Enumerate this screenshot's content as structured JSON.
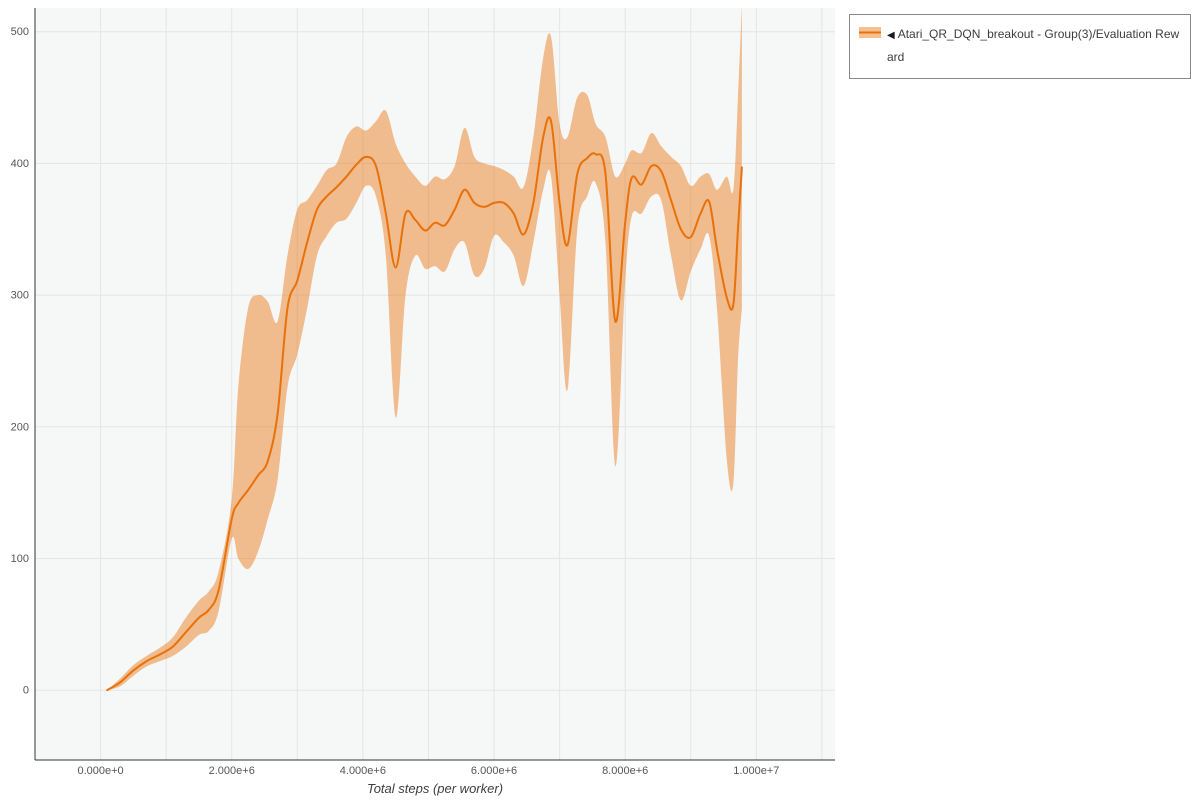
{
  "legend": {
    "marker": "◀",
    "label": "Atari_QR_DQN_breakout - Group(3)/Evaluation Reward"
  },
  "chart_data": {
    "type": "line",
    "title": "",
    "xlabel": "Total steps (per worker)",
    "ylabel": "",
    "grid": true,
    "legend_position": "top-right",
    "xlim": [
      -1000000,
      11200000
    ],
    "ylim": [
      -53,
      518
    ],
    "x_ticks": [
      {
        "value": 0,
        "label": "0.000e+0"
      },
      {
        "value": 2000000,
        "label": "2.000e+6"
      },
      {
        "value": 4000000,
        "label": "4.000e+6"
      },
      {
        "value": 6000000,
        "label": "6.000e+6"
      },
      {
        "value": 8000000,
        "label": "8.000e+6"
      },
      {
        "value": 10000000,
        "label": "1.000e+7"
      }
    ],
    "y_ticks": [
      {
        "value": 0,
        "label": "0"
      },
      {
        "value": 100,
        "label": "100"
      },
      {
        "value": 200,
        "label": "200"
      },
      {
        "value": 300,
        "label": "300"
      },
      {
        "value": 400,
        "label": "400"
      },
      {
        "value": 500,
        "label": "500"
      }
    ],
    "x_gridline_step": 1000000,
    "x_gridline_max": 11000000,
    "colors": {
      "line": "#e8710a",
      "band": "#e8710a",
      "band_opacity": 0.45,
      "grid": "#e3e6e5",
      "plot_background": "#f6f7f7",
      "axis": "#333333",
      "tick_text": "#555555"
    },
    "series": [
      {
        "name": "Atari_QR_DQN_breakout - Group(3)/Evaluation Reward",
        "x": [
          100000,
          300000,
          500000,
          700000,
          900000,
          1100000,
          1300000,
          1500000,
          1650000,
          1800000,
          2000000,
          2100000,
          2250000,
          2400000,
          2550000,
          2700000,
          2850000,
          3000000,
          3150000,
          3300000,
          3450000,
          3600000,
          3750000,
          3900000,
          4050000,
          4200000,
          4350000,
          4500000,
          4650000,
          4800000,
          4950000,
          5100000,
          5250000,
          5400000,
          5550000,
          5700000,
          5850000,
          6000000,
          6150000,
          6300000,
          6450000,
          6600000,
          6750000,
          6870000,
          7000000,
          7120000,
          7270000,
          7420000,
          7550000,
          7700000,
          7850000,
          8000000,
          8100000,
          8250000,
          8400000,
          8550000,
          8700000,
          8850000,
          9000000,
          9150000,
          9280000,
          9400000,
          9550000,
          9650000,
          9720000,
          9780000
        ],
        "mean": [
          0,
          6,
          15,
          22,
          27,
          33,
          44,
          55,
          61,
          76,
          130,
          142,
          152,
          163,
          174,
          210,
          290,
          311,
          340,
          365,
          375,
          382,
          390,
          399,
          405,
          398,
          362,
          321,
          362,
          357,
          349,
          355,
          353,
          365,
          380,
          370,
          367,
          370,
          370,
          362,
          346,
          370,
          420,
          432,
          370,
          338,
          392,
          404,
          407,
          392,
          280,
          355,
          389,
          384,
          398,
          394,
          372,
          350,
          344,
          362,
          371,
          335,
          298,
          293,
          350,
          397
        ],
        "lower": [
          0,
          3,
          11,
          18,
          22,
          26,
          33,
          42,
          45,
          60,
          115,
          100,
          92,
          105,
          130,
          160,
          230,
          255,
          290,
          330,
          345,
          355,
          358,
          370,
          383,
          375,
          330,
          207,
          300,
          330,
          320,
          322,
          318,
          335,
          340,
          315,
          320,
          345,
          340,
          330,
          307,
          340,
          380,
          390,
          300,
          228,
          350,
          375,
          385,
          340,
          170,
          310,
          360,
          362,
          375,
          372,
          330,
          296,
          318,
          335,
          345,
          290,
          175,
          157,
          250,
          290
        ],
        "upper": [
          0,
          9,
          19,
          26,
          32,
          40,
          55,
          68,
          75,
          90,
          145,
          230,
          290,
          300,
          295,
          280,
          330,
          365,
          372,
          383,
          395,
          400,
          420,
          428,
          425,
          432,
          440,
          415,
          400,
          390,
          383,
          390,
          388,
          398,
          427,
          405,
          400,
          398,
          395,
          390,
          382,
          420,
          480,
          496,
          430,
          420,
          450,
          452,
          430,
          420,
          390,
          400,
          410,
          408,
          423,
          413,
          405,
          398,
          383,
          390,
          392,
          380,
          390,
          380,
          450,
          521
        ]
      }
    ]
  }
}
